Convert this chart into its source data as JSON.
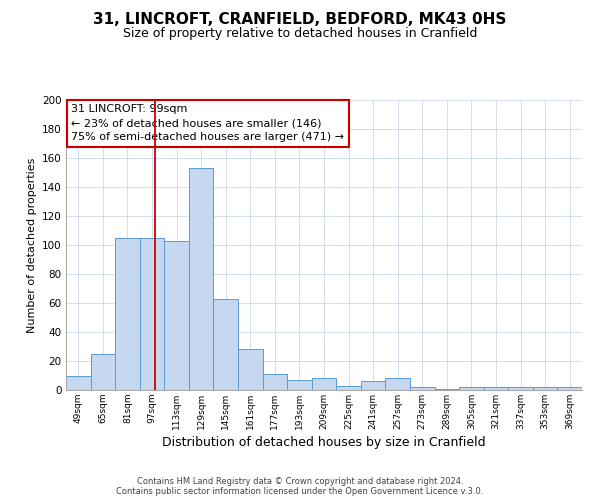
{
  "title": "31, LINCROFT, CRANFIELD, BEDFORD, MK43 0HS",
  "subtitle": "Size of property relative to detached houses in Cranfield",
  "xlabel": "Distribution of detached houses by size in Cranfield",
  "ylabel": "Number of detached properties",
  "bar_color": "#c5d8f0",
  "bar_edge_color": "#5b9bd5",
  "bin_labels": [
    "49sqm",
    "65sqm",
    "81sqm",
    "97sqm",
    "113sqm",
    "129sqm",
    "145sqm",
    "161sqm",
    "177sqm",
    "193sqm",
    "209sqm",
    "225sqm",
    "241sqm",
    "257sqm",
    "273sqm",
    "289sqm",
    "305sqm",
    "321sqm",
    "337sqm",
    "353sqm",
    "369sqm"
  ],
  "bin_edges": [
    41,
    57,
    73,
    89,
    105,
    121,
    137,
    153,
    169,
    185,
    201,
    217,
    233,
    249,
    265,
    281,
    297,
    313,
    329,
    345,
    361,
    377
  ],
  "counts": [
    10,
    25,
    105,
    105,
    103,
    153,
    63,
    28,
    11,
    7,
    8,
    3,
    6,
    8,
    2,
    1,
    2,
    2,
    2,
    2,
    2
  ],
  "ylim": [
    0,
    200
  ],
  "yticks": [
    0,
    20,
    40,
    60,
    80,
    100,
    120,
    140,
    160,
    180,
    200
  ],
  "property_size": 99,
  "vline_color": "#cc0000",
  "annotation_box_color": "#cc0000",
  "annotation_title": "31 LINCROFT: 99sqm",
  "annotation_line1": "← 23% of detached houses are smaller (146)",
  "annotation_line2": "75% of semi-detached houses are larger (471) →",
  "footer1": "Contains HM Land Registry data © Crown copyright and database right 2024.",
  "footer2": "Contains public sector information licensed under the Open Government Licence v.3.0.",
  "background_color": "#ffffff",
  "grid_color": "#c8d8eb"
}
